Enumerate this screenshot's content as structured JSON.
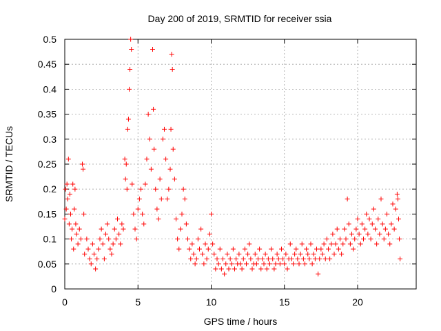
{
  "chart_data": {
    "type": "scatter",
    "title": "Day 200 of 2019, SRMTID for receiver ssia",
    "xlabel": "GPS time / hours",
    "ylabel": "SRMTID / TECUs",
    "xlim": [
      0,
      24
    ],
    "ylim": [
      0,
      0.5
    ],
    "xticks": [
      0,
      5,
      10,
      15,
      20
    ],
    "yticks": [
      0,
      0.05,
      0.1,
      0.15,
      0.2,
      0.25,
      0.3,
      0.35,
      0.4,
      0.45,
      0.5
    ],
    "grid": true,
    "marker": "+",
    "color": "#ff0000",
    "series": [
      {
        "name": "SRMTID",
        "points": [
          [
            0.0,
            0.14
          ],
          [
            0.05,
            0.2
          ],
          [
            0.1,
            0.16
          ],
          [
            0.15,
            0.21
          ],
          [
            0.2,
            0.18
          ],
          [
            0.25,
            0.26
          ],
          [
            0.3,
            0.13
          ],
          [
            0.35,
            0.19
          ],
          [
            0.4,
            0.15
          ],
          [
            0.45,
            0.1
          ],
          [
            0.5,
            0.12
          ],
          [
            0.55,
            0.21
          ],
          [
            0.6,
            0.08
          ],
          [
            0.65,
            0.16
          ],
          [
            0.7,
            0.2
          ],
          [
            0.75,
            0.13
          ],
          [
            0.8,
            0.11
          ],
          [
            0.9,
            0.09
          ],
          [
            1.0,
            0.12
          ],
          [
            1.1,
            0.1
          ],
          [
            1.2,
            0.25
          ],
          [
            1.25,
            0.24
          ],
          [
            1.3,
            0.15
          ],
          [
            1.35,
            0.07
          ],
          [
            1.5,
            0.1
          ],
          [
            1.6,
            0.08
          ],
          [
            1.7,
            0.06
          ],
          [
            1.8,
            0.05
          ],
          [
            1.9,
            0.09
          ],
          [
            2.0,
            0.07
          ],
          [
            2.1,
            0.04
          ],
          [
            2.2,
            0.06
          ],
          [
            2.3,
            0.08
          ],
          [
            2.4,
            0.1
          ],
          [
            2.5,
            0.12
          ],
          [
            2.6,
            0.09
          ],
          [
            2.7,
            0.06
          ],
          [
            2.8,
            0.11
          ],
          [
            2.9,
            0.13
          ],
          [
            3.0,
            0.1
          ],
          [
            3.1,
            0.08
          ],
          [
            3.2,
            0.07
          ],
          [
            3.3,
            0.09
          ],
          [
            3.4,
            0.12
          ],
          [
            3.5,
            0.1
          ],
          [
            3.6,
            0.14
          ],
          [
            3.7,
            0.11
          ],
          [
            3.8,
            0.09
          ],
          [
            3.9,
            0.13
          ],
          [
            4.0,
            0.12
          ],
          [
            4.1,
            0.26
          ],
          [
            4.15,
            0.22
          ],
          [
            4.2,
            0.25
          ],
          [
            4.25,
            0.2
          ],
          [
            4.3,
            0.32
          ],
          [
            4.35,
            0.34
          ],
          [
            4.4,
            0.4
          ],
          [
            4.45,
            0.44
          ],
          [
            4.5,
            0.5
          ],
          [
            4.55,
            0.48
          ],
          [
            4.6,
            0.21
          ],
          [
            4.7,
            0.15
          ],
          [
            4.8,
            0.12
          ],
          [
            4.9,
            0.1
          ],
          [
            5.0,
            0.16
          ],
          [
            5.1,
            0.18
          ],
          [
            5.2,
            0.2
          ],
          [
            5.3,
            0.15
          ],
          [
            5.4,
            0.13
          ],
          [
            5.5,
            0.21
          ],
          [
            5.6,
            0.26
          ],
          [
            5.7,
            0.35
          ],
          [
            5.8,
            0.3
          ],
          [
            5.9,
            0.24
          ],
          [
            6.0,
            0.48
          ],
          [
            6.05,
            0.36
          ],
          [
            6.1,
            0.28
          ],
          [
            6.2,
            0.2
          ],
          [
            6.3,
            0.16
          ],
          [
            6.4,
            0.14
          ],
          [
            6.5,
            0.22
          ],
          [
            6.6,
            0.18
          ],
          [
            6.7,
            0.3
          ],
          [
            6.8,
            0.32
          ],
          [
            6.9,
            0.26
          ],
          [
            7.0,
            0.18
          ],
          [
            7.1,
            0.2
          ],
          [
            7.2,
            0.24
          ],
          [
            7.25,
            0.32
          ],
          [
            7.3,
            0.47
          ],
          [
            7.35,
            0.44
          ],
          [
            7.4,
            0.28
          ],
          [
            7.5,
            0.22
          ],
          [
            7.6,
            0.14
          ],
          [
            7.7,
            0.1
          ],
          [
            7.8,
            0.08
          ],
          [
            7.9,
            0.12
          ],
          [
            8.0,
            0.15
          ],
          [
            8.1,
            0.2
          ],
          [
            8.2,
            0.18
          ],
          [
            8.3,
            0.13
          ],
          [
            8.4,
            0.1
          ],
          [
            8.5,
            0.08
          ],
          [
            8.6,
            0.06
          ],
          [
            8.7,
            0.09
          ],
          [
            8.8,
            0.07
          ],
          [
            8.9,
            0.05
          ],
          [
            9.0,
            0.06
          ],
          [
            9.1,
            0.1
          ],
          [
            9.2,
            0.08
          ],
          [
            9.3,
            0.12
          ],
          [
            9.4,
            0.07
          ],
          [
            9.5,
            0.05
          ],
          [
            9.6,
            0.09
          ],
          [
            9.7,
            0.06
          ],
          [
            9.8,
            0.08
          ],
          [
            9.9,
            0.11
          ],
          [
            10.0,
            0.15
          ],
          [
            10.1,
            0.09
          ],
          [
            10.2,
            0.07
          ],
          [
            10.3,
            0.04
          ],
          [
            10.4,
            0.06
          ],
          [
            10.5,
            0.05
          ],
          [
            10.6,
            0.08
          ],
          [
            10.7,
            0.04
          ],
          [
            10.8,
            0.06
          ],
          [
            10.9,
            0.03
          ],
          [
            11.0,
            0.05
          ],
          [
            11.1,
            0.07
          ],
          [
            11.2,
            0.04
          ],
          [
            11.3,
            0.06
          ],
          [
            11.4,
            0.05
          ],
          [
            11.5,
            0.08
          ],
          [
            11.6,
            0.04
          ],
          [
            11.7,
            0.06
          ],
          [
            11.8,
            0.05
          ],
          [
            11.9,
            0.07
          ],
          [
            12.0,
            0.05
          ],
          [
            12.1,
            0.04
          ],
          [
            12.2,
            0.06
          ],
          [
            12.3,
            0.08
          ],
          [
            12.4,
            0.05
          ],
          [
            12.5,
            0.07
          ],
          [
            12.6,
            0.09
          ],
          [
            12.7,
            0.06
          ],
          [
            12.8,
            0.04
          ],
          [
            12.9,
            0.05
          ],
          [
            13.0,
            0.07
          ],
          [
            13.1,
            0.05
          ],
          [
            13.2,
            0.06
          ],
          [
            13.3,
            0.08
          ],
          [
            13.4,
            0.04
          ],
          [
            13.5,
            0.06
          ],
          [
            13.6,
            0.05
          ],
          [
            13.7,
            0.07
          ],
          [
            13.8,
            0.04
          ],
          [
            13.9,
            0.06
          ],
          [
            14.0,
            0.05
          ],
          [
            14.1,
            0.08
          ],
          [
            14.2,
            0.06
          ],
          [
            14.3,
            0.04
          ],
          [
            14.4,
            0.05
          ],
          [
            14.5,
            0.07
          ],
          [
            14.6,
            0.06
          ],
          [
            14.7,
            0.05
          ],
          [
            14.8,
            0.08
          ],
          [
            14.9,
            0.06
          ],
          [
            15.0,
            0.05
          ],
          [
            15.1,
            0.07
          ],
          [
            15.2,
            0.04
          ],
          [
            15.3,
            0.06
          ],
          [
            15.4,
            0.09
          ],
          [
            15.5,
            0.06
          ],
          [
            15.6,
            0.05
          ],
          [
            15.7,
            0.07
          ],
          [
            15.8,
            0.08
          ],
          [
            15.9,
            0.06
          ],
          [
            16.0,
            0.05
          ],
          [
            16.1,
            0.07
          ],
          [
            16.2,
            0.09
          ],
          [
            16.3,
            0.06
          ],
          [
            16.4,
            0.05
          ],
          [
            16.5,
            0.08
          ],
          [
            16.6,
            0.07
          ],
          [
            16.7,
            0.06
          ],
          [
            16.8,
            0.09
          ],
          [
            16.9,
            0.05
          ],
          [
            17.0,
            0.07
          ],
          [
            17.1,
            0.06
          ],
          [
            17.2,
            0.08
          ],
          [
            17.3,
            0.03
          ],
          [
            17.4,
            0.06
          ],
          [
            17.5,
            0.08
          ],
          [
            17.6,
            0.07
          ],
          [
            17.7,
            0.09
          ],
          [
            17.8,
            0.06
          ],
          [
            17.9,
            0.1
          ],
          [
            18.0,
            0.08
          ],
          [
            18.1,
            0.06
          ],
          [
            18.2,
            0.09
          ],
          [
            18.3,
            0.11
          ],
          [
            18.4,
            0.07
          ],
          [
            18.5,
            0.09
          ],
          [
            18.6,
            0.12
          ],
          [
            18.7,
            0.08
          ],
          [
            18.8,
            0.1
          ],
          [
            18.9,
            0.07
          ],
          [
            19.0,
            0.09
          ],
          [
            19.1,
            0.12
          ],
          [
            19.2,
            0.1
          ],
          [
            19.3,
            0.18
          ],
          [
            19.4,
            0.13
          ],
          [
            19.5,
            0.09
          ],
          [
            19.6,
            0.11
          ],
          [
            19.7,
            0.08
          ],
          [
            19.8,
            0.1
          ],
          [
            19.9,
            0.12
          ],
          [
            20.0,
            0.14
          ],
          [
            20.1,
            0.11
          ],
          [
            20.2,
            0.09
          ],
          [
            20.3,
            0.13
          ],
          [
            20.4,
            0.1
          ],
          [
            20.5,
            0.12
          ],
          [
            20.6,
            0.15
          ],
          [
            20.7,
            0.11
          ],
          [
            20.8,
            0.14
          ],
          [
            20.9,
            0.1
          ],
          [
            21.0,
            0.13
          ],
          [
            21.1,
            0.16
          ],
          [
            21.2,
            0.12
          ],
          [
            21.3,
            0.09
          ],
          [
            21.4,
            0.14
          ],
          [
            21.5,
            0.11
          ],
          [
            21.6,
            0.18
          ],
          [
            21.7,
            0.13
          ],
          [
            21.8,
            0.1
          ],
          [
            21.9,
            0.12
          ],
          [
            22.0,
            0.15
          ],
          [
            22.1,
            0.11
          ],
          [
            22.2,
            0.09
          ],
          [
            22.3,
            0.13
          ],
          [
            22.4,
            0.17
          ],
          [
            22.5,
            0.12
          ],
          [
            22.6,
            0.16
          ],
          [
            22.7,
            0.19
          ],
          [
            22.75,
            0.18
          ],
          [
            22.8,
            0.14
          ],
          [
            22.85,
            0.1
          ],
          [
            22.9,
            0.06
          ]
        ]
      }
    ]
  }
}
